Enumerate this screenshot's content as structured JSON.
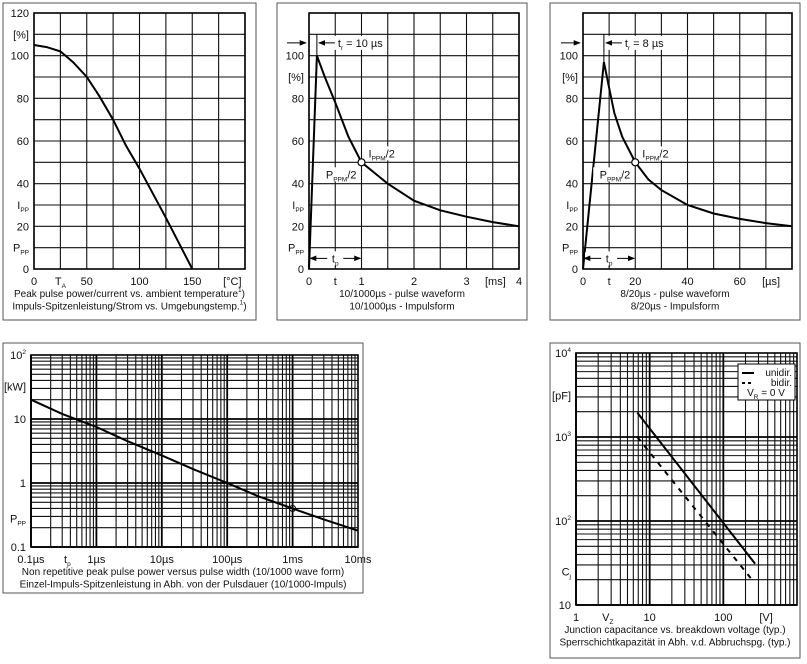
{
  "chart_data": [
    {
      "type": "line",
      "xlim": [
        0,
        200
      ],
      "ylim": [
        0,
        120
      ],
      "x_grid_step": 25,
      "y_grid_step": 10,
      "grid": true,
      "x_ticks": [
        {
          "value": 0,
          "label": "0"
        },
        {
          "value": 25,
          "label": "T",
          "sub": "A"
        },
        {
          "value": 50,
          "label": "50"
        },
        {
          "value": 100,
          "label": "100"
        },
        {
          "value": 150,
          "label": "150"
        },
        {
          "value": 188,
          "label": "[°C]"
        }
      ],
      "y_ticks": [
        {
          "value": 0,
          "label": "0"
        },
        {
          "value": 10,
          "label": "P",
          "sub": "PP"
        },
        {
          "value": 20,
          "label": "20"
        },
        {
          "value": 30,
          "label": "I",
          "sub": "PP"
        },
        {
          "value": 40,
          "label": "40"
        },
        {
          "value": 60,
          "label": "60"
        },
        {
          "value": 80,
          "label": "80"
        },
        {
          "value": 100,
          "label": "100"
        },
        {
          "value": 110,
          "label": "[%]"
        },
        {
          "value": 120,
          "label": "120"
        }
      ],
      "series": [
        {
          "x": [
            0,
            12,
            25,
            37,
            50,
            62,
            75,
            87,
            100,
            125,
            150
          ],
          "y": [
            105,
            104,
            102,
            97,
            90,
            81,
            70,
            58,
            47,
            24,
            0
          ]
        }
      ],
      "caption": [
        {
          "label": "Peak pulse power/current vs. ambient temperature",
          "sup": "1",
          "suffix": ")"
        },
        {
          "label": "Impuls-Spitzenleistung/Strom vs. Umgebungstemp.",
          "sup": "1",
          "suffix": ")"
        }
      ]
    },
    {
      "type": "line",
      "xlim": [
        0,
        4
      ],
      "ylim": [
        0,
        120
      ],
      "x_grid_step": 0.5,
      "y_grid_step": 10,
      "grid": true,
      "x_ticks": [
        {
          "value": 0,
          "label": "0"
        },
        {
          "value": 0.5,
          "label": "t"
        },
        {
          "value": 1,
          "label": "1"
        },
        {
          "value": 2,
          "label": "2"
        },
        {
          "value": 3,
          "label": "3"
        },
        {
          "value": 3.55,
          "label": "[ms]"
        },
        {
          "value": 4,
          "label": "4"
        }
      ],
      "y_ticks": [
        {
          "value": 0,
          "label": "0"
        },
        {
          "value": 10,
          "label": "P",
          "sub": "PP"
        },
        {
          "value": 20,
          "label": "20"
        },
        {
          "value": 30,
          "label": "I",
          "sub": "PP"
        },
        {
          "value": 40,
          "label": "40"
        },
        {
          "value": 60,
          "label": "60"
        },
        {
          "value": 80,
          "label": "80"
        },
        {
          "value": 90,
          "label": "[%]"
        },
        {
          "value": 100,
          "label": "100"
        }
      ],
      "series": [
        {
          "x": [
            0,
            0.15,
            0.3,
            0.5,
            0.75,
            1,
            1.5,
            2,
            2.5,
            3,
            3.5,
            4
          ],
          "y": [
            0,
            100,
            90,
            78,
            62,
            50,
            40,
            32,
            27.5,
            24.5,
            22,
            20
          ]
        }
      ],
      "annotations": {
        "rise_time": {
          "label": "t",
          "sub": "r",
          "suffix": " = 10 µs"
        },
        "pulse_duration": {
          "label": "t",
          "sub": "p"
        },
        "half_point": {
          "x": 1,
          "y": 50
        },
        "half_current": {
          "label": "I",
          "sub": "PPM",
          "suffix": "/2"
        },
        "half_power": {
          "label": "P",
          "sub": "PPM",
          "suffix": "/2"
        }
      },
      "caption": [
        {
          "label": "10/1000µs - pulse waveform"
        },
        {
          "label": "10/1000µs - Impulsform"
        }
      ]
    },
    {
      "type": "line",
      "xlim": [
        0,
        80
      ],
      "ylim": [
        0,
        120
      ],
      "x_grid_step": 10,
      "y_grid_step": 10,
      "grid": true,
      "x_ticks": [
        {
          "value": 0,
          "label": "0"
        },
        {
          "value": 10,
          "label": "t"
        },
        {
          "value": 20,
          "label": "20"
        },
        {
          "value": 40,
          "label": "40"
        },
        {
          "value": 60,
          "label": "60"
        },
        {
          "value": 72,
          "label": "[µs]"
        }
      ],
      "y_ticks": [
        {
          "value": 0,
          "label": "0"
        },
        {
          "value": 10,
          "label": "P",
          "sub": "PP"
        },
        {
          "value": 20,
          "label": "20"
        },
        {
          "value": 30,
          "label": "I",
          "sub": "PP"
        },
        {
          "value": 40,
          "label": "40"
        },
        {
          "value": 60,
          "label": "60"
        },
        {
          "value": 80,
          "label": "80"
        },
        {
          "value": 90,
          "label": "[%]"
        },
        {
          "value": 100,
          "label": "100"
        }
      ],
      "series": [
        {
          "x": [
            0,
            8,
            10,
            12,
            15,
            20,
            25,
            30,
            40,
            50,
            60,
            70,
            80
          ],
          "y": [
            0,
            97,
            85,
            73,
            62,
            50,
            42,
            37,
            30,
            26,
            23.5,
            21.5,
            20
          ]
        }
      ],
      "annotations": {
        "rise_time": {
          "label": "t",
          "sub": "r",
          "suffix": " = 8 µs"
        },
        "pulse_duration": {
          "label": "t",
          "sub": "p"
        },
        "half_point": {
          "x": 20,
          "y": 50
        },
        "half_current": {
          "label": "I",
          "sub": "PPM",
          "suffix": "/2"
        },
        "half_power": {
          "label": "P",
          "sub": "PPM",
          "suffix": "/2"
        }
      },
      "caption": [
        {
          "label": "8/20µs - pulse waveform"
        },
        {
          "label": "8/20µs - Impulsform"
        }
      ]
    },
    {
      "type": "line",
      "x_scale": "log",
      "y_scale": "log",
      "xlim": [
        0.1,
        10000
      ],
      "ylim": [
        0.1,
        100
      ],
      "grid": true,
      "x_ticks": [
        {
          "value": 0.1,
          "label": "0.1µs"
        },
        {
          "value": 0.36,
          "label": "t",
          "sub": "p"
        },
        {
          "value": 1,
          "label": "1µs"
        },
        {
          "value": 10,
          "label": "10µs"
        },
        {
          "value": 100,
          "label": "100µs"
        },
        {
          "value": 1000,
          "label": "1ms"
        },
        {
          "value": 10000,
          "label": "10ms"
        }
      ],
      "y_ticks": [
        {
          "value": 0.1,
          "label": "0.1"
        },
        {
          "value": 0.28,
          "label": "P",
          "sub": "PP"
        },
        {
          "value": 1,
          "label": "1"
        },
        {
          "value": 10,
          "label": "10"
        },
        {
          "value": 32,
          "label": "[kW]"
        },
        {
          "value": 100,
          "label": "10",
          "sup": "2"
        }
      ],
      "series": [
        {
          "x": [
            0.1,
            0.3,
            1,
            3,
            10,
            30,
            100,
            300,
            1000,
            3000,
            10000
          ],
          "y": [
            20,
            12,
            7.5,
            4.5,
            2.7,
            1.65,
            1.0,
            0.62,
            0.4,
            0.27,
            0.18
          ]
        }
      ],
      "marker": {
        "x": 1000,
        "y": 0.4
      },
      "caption": [
        {
          "label": "Non repetitive peak pulse power  versus pulse width (10/1000 wave form)"
        },
        {
          "label": "Einzel-Impuls-Spitzenleistung in Abh. von der Pulsdauer  (10/1000-Impuls)"
        }
      ]
    },
    {
      "type": "line",
      "x_scale": "log",
      "y_scale": "log",
      "xlim": [
        1,
        1000
      ],
      "ylim": [
        10,
        10000
      ],
      "grid": true,
      "x_ticks": [
        {
          "value": 1,
          "label": "1"
        },
        {
          "value": 2.7,
          "label": "V",
          "sub": "Z"
        },
        {
          "value": 10,
          "label": "10"
        },
        {
          "value": 100,
          "label": "100"
        },
        {
          "value": 380,
          "label": "[V]"
        }
      ],
      "y_ticks": [
        {
          "value": 10,
          "label": "10"
        },
        {
          "value": 25,
          "label": "C",
          "sub": "j"
        },
        {
          "value": 100,
          "label": "10",
          "sup": "2"
        },
        {
          "value": 1000,
          "label": "10",
          "sup": "3"
        },
        {
          "value": 3100,
          "label": "[pF]"
        },
        {
          "value": 10000,
          "label": "10",
          "sup": "4"
        }
      ],
      "series": [
        {
          "name": "unidir.",
          "style": "solid",
          "x": [
            6.8,
            270
          ],
          "y": [
            1950,
            31
          ]
        },
        {
          "name": "bidir.",
          "style": "dashed",
          "x": [
            6.8,
            245
          ],
          "y": [
            1000,
            20
          ]
        }
      ],
      "legend": {
        "position": "top-right",
        "note": {
          "label": "V",
          "sub": "R",
          "suffix": " = 0 V"
        }
      },
      "caption": [
        {
          "label": "Junction capacitance vs. breakdown voltage (typ.)"
        },
        {
          "label": "Sperrschichtkapazität in Abh. v.d. Abbruchspg. (typ.)"
        }
      ]
    }
  ]
}
